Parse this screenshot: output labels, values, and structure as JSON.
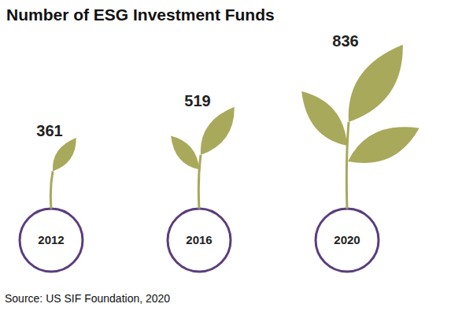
{
  "chart_data": {
    "type": "pictograph",
    "title": "Number of ESG Investment Funds",
    "categories": [
      "2012",
      "2016",
      "2020"
    ],
    "values": [
      361,
      519,
      836
    ],
    "color": "#a8a95b",
    "data_labels": true,
    "source": "Source: US SIF Foundation, 2020"
  }
}
